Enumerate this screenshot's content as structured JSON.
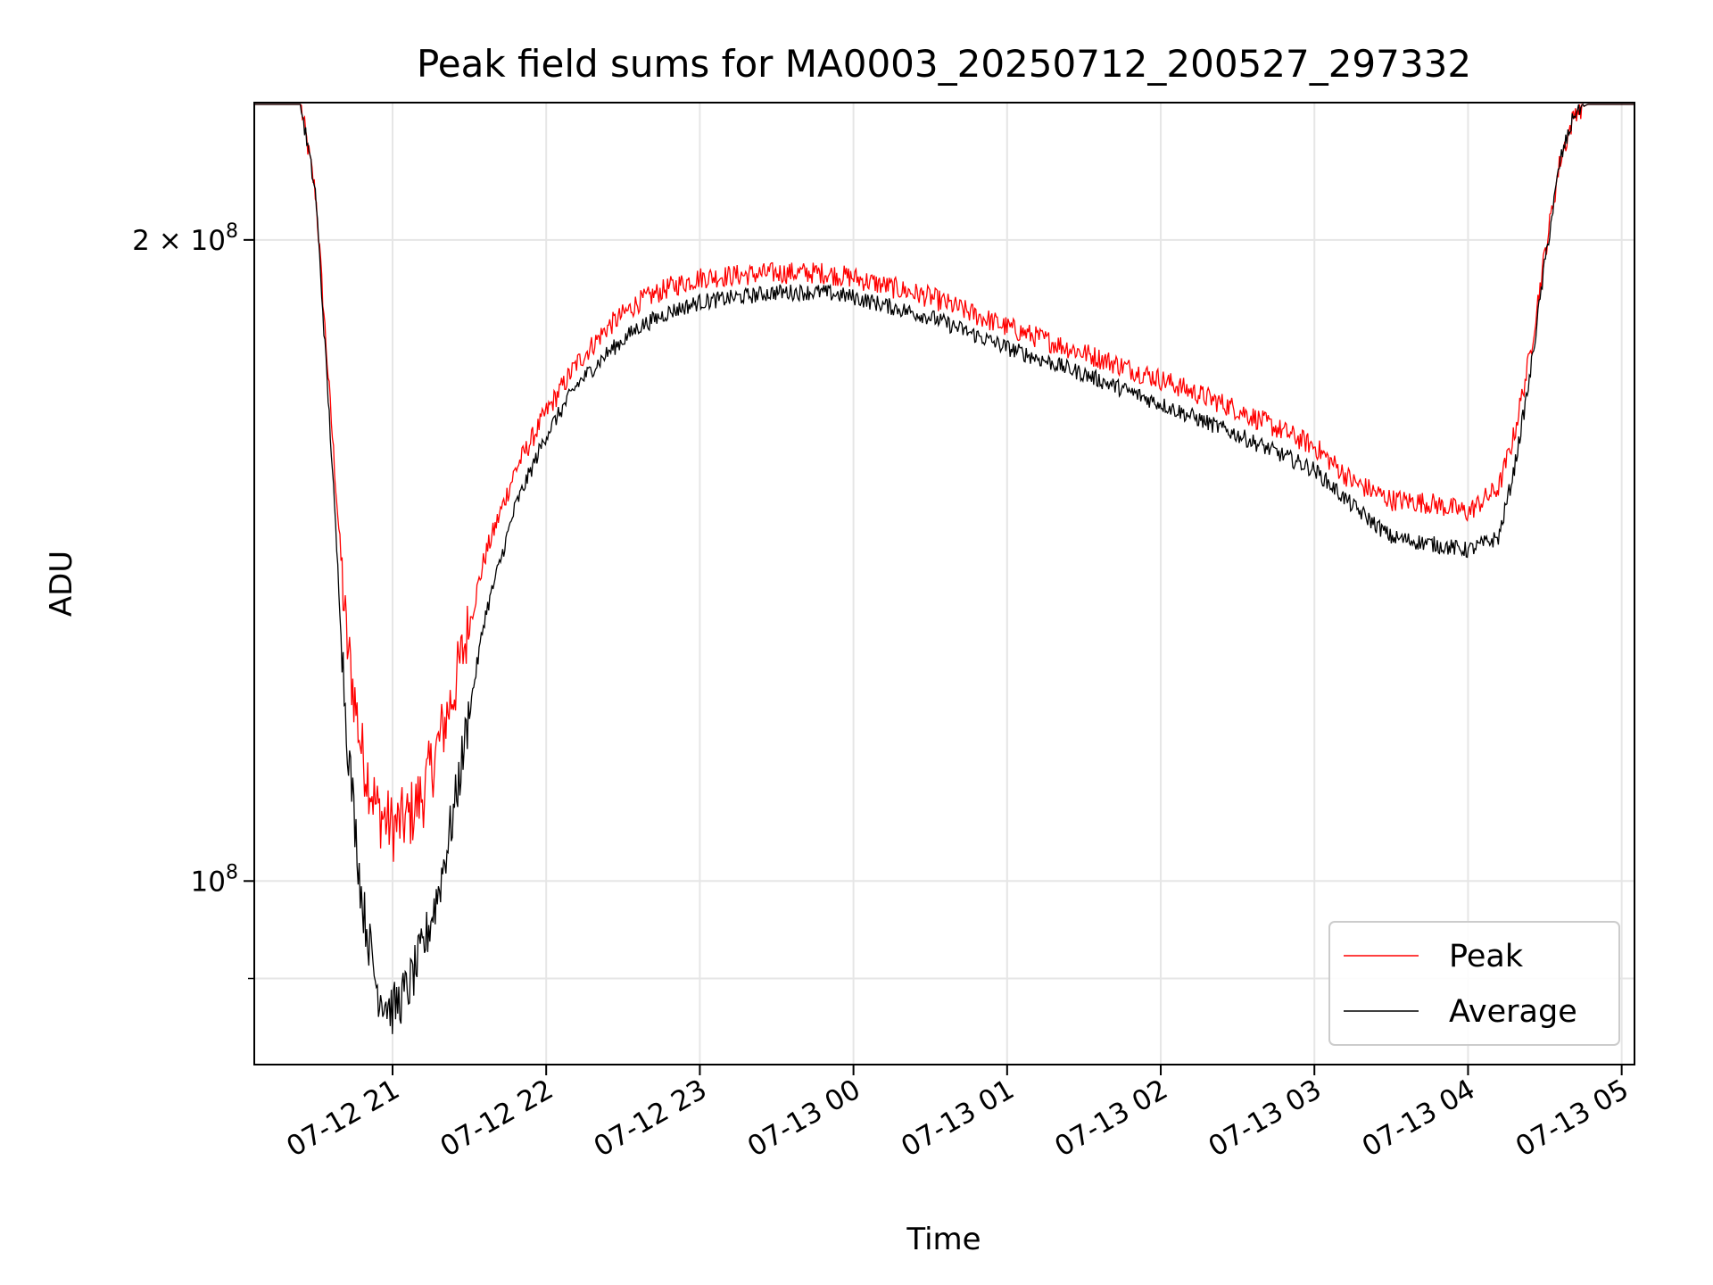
{
  "chart_data": {
    "type": "line",
    "title": "Peak field sums for MA0003_20250712_200527_297332",
    "xlabel": "Time",
    "ylabel": "ADU",
    "yscale": "log",
    "ylim": [
      82000000,
      232000000
    ],
    "xlim": [
      "2025-07-12T20:06",
      "2025-07-13T05:05"
    ],
    "grid": true,
    "legend_position": "lower right",
    "x_ticks": [
      {
        "value": "2025-07-12T21:00",
        "label": "07-12 21"
      },
      {
        "value": "2025-07-12T22:00",
        "label": "07-12 22"
      },
      {
        "value": "2025-07-12T23:00",
        "label": "07-12 23"
      },
      {
        "value": "2025-07-13T00:00",
        "label": "07-13 00"
      },
      {
        "value": "2025-07-13T01:00",
        "label": "07-13 01"
      },
      {
        "value": "2025-07-13T02:00",
        "label": "07-13 02"
      },
      {
        "value": "2025-07-13T03:00",
        "label": "07-13 03"
      },
      {
        "value": "2025-07-13T04:00",
        "label": "07-13 04"
      },
      {
        "value": "2025-07-13T05:00",
        "label": "07-13 05"
      }
    ],
    "y_ticks": [
      {
        "value": 100000000,
        "base": "10",
        "sup": "8",
        "mult": ""
      },
      {
        "value": 200000000,
        "base": "10",
        "sup": "8",
        "mult": "2 × "
      }
    ],
    "y_minor_ticks": [
      90000000
    ],
    "series": [
      {
        "name": "Peak",
        "color": "#ff0000",
        "noise": 0.012,
        "x": [
          "2025-07-12T20:06",
          "2025-07-12T20:24",
          "2025-07-12T20:30",
          "2025-07-12T20:36",
          "2025-07-12T20:42",
          "2025-07-12T20:48",
          "2025-07-12T20:54",
          "2025-07-12T21:00",
          "2025-07-12T21:06",
          "2025-07-12T21:12",
          "2025-07-12T21:18",
          "2025-07-12T21:24",
          "2025-07-12T21:30",
          "2025-07-12T21:36",
          "2025-07-12T21:48",
          "2025-07-12T22:00",
          "2025-07-12T22:12",
          "2025-07-12T22:24",
          "2025-07-12T22:36",
          "2025-07-12T22:48",
          "2025-07-12T23:00",
          "2025-07-12T23:30",
          "2025-07-12T23:48",
          "2025-07-13T00:00",
          "2025-07-13T00:30",
          "2025-07-13T01:00",
          "2025-07-13T01:30",
          "2025-07-13T02:00",
          "2025-07-13T02:30",
          "2025-07-13T03:00",
          "2025-07-13T03:15",
          "2025-07-13T03:30",
          "2025-07-13T03:45",
          "2025-07-13T04:00",
          "2025-07-13T04:12",
          "2025-07-13T04:18",
          "2025-07-13T04:24",
          "2025-07-13T04:30",
          "2025-07-13T04:36",
          "2025-07-13T04:42",
          "2025-07-13T04:48",
          "2025-07-13T05:05"
        ],
        "y": [
          232000000,
          232000000,
          210000000,
          165000000,
          130000000,
          115000000,
          108000000,
          106000000,
          107000000,
          110000000,
          116000000,
          123000000,
          132000000,
          142000000,
          156000000,
          166000000,
          175000000,
          182000000,
          187000000,
          190000000,
          192000000,
          193000000,
          193000000,
          192000000,
          188000000,
          182000000,
          177000000,
          172000000,
          166500000,
          160000000,
          154000000,
          151000000,
          150500000,
          149000000,
          153000000,
          162000000,
          176000000,
          197000000,
          218000000,
          230000000,
          232000000,
          232000000
        ]
      },
      {
        "name": "Average",
        "color": "#000000",
        "noise": 0.009,
        "x": [
          "2025-07-12T20:06",
          "2025-07-12T20:24",
          "2025-07-12T20:30",
          "2025-07-12T20:36",
          "2025-07-12T20:42",
          "2025-07-12T20:48",
          "2025-07-12T20:54",
          "2025-07-12T21:00",
          "2025-07-12T21:06",
          "2025-07-12T21:12",
          "2025-07-12T21:18",
          "2025-07-12T21:24",
          "2025-07-12T21:30",
          "2025-07-12T21:36",
          "2025-07-12T21:48",
          "2025-07-12T22:00",
          "2025-07-12T22:12",
          "2025-07-12T22:24",
          "2025-07-12T22:36",
          "2025-07-12T22:48",
          "2025-07-12T23:00",
          "2025-07-12T23:30",
          "2025-07-12T23:48",
          "2025-07-13T00:00",
          "2025-07-13T00:30",
          "2025-07-13T01:00",
          "2025-07-13T01:30",
          "2025-07-13T02:00",
          "2025-07-13T02:30",
          "2025-07-13T03:00",
          "2025-07-13T03:15",
          "2025-07-13T03:30",
          "2025-07-13T03:45",
          "2025-07-13T04:00",
          "2025-07-13T04:12",
          "2025-07-13T04:18",
          "2025-07-13T04:24",
          "2025-07-13T04:30",
          "2025-07-13T04:36",
          "2025-07-13T04:42",
          "2025-07-13T04:48",
          "2025-07-13T05:05"
        ],
        "y": [
          232000000,
          232000000,
          210000000,
          160000000,
          118000000,
          98000000,
          89000000,
          87000000,
          89000000,
          93000000,
          99000000,
          108000000,
          120000000,
          133000000,
          150000000,
          162000000,
          171000000,
          177000000,
          182000000,
          185000000,
          187000000,
          189000000,
          189000000,
          188000000,
          184000000,
          178000000,
          173000000,
          167500000,
          162000000,
          156000000,
          150000000,
          145000000,
          144000000,
          143000000,
          145000000,
          156000000,
          172000000,
          195000000,
          218000000,
          230000000,
          232000000,
          232000000
        ]
      }
    ]
  }
}
